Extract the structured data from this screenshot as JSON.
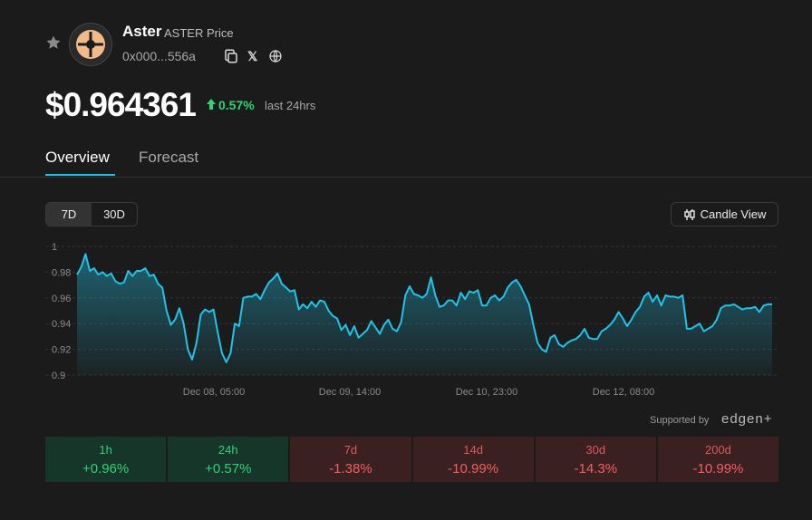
{
  "token": {
    "name": "Aster",
    "subtitle": "ASTER Price",
    "address": "0x000...556a",
    "price": "$0.964361",
    "change": "0.57%",
    "change_label": "last 24hrs",
    "x_glyph": "𝕏"
  },
  "tabs": {
    "overview": "Overview",
    "forecast": "Forecast"
  },
  "controls": {
    "range_7d": "7D",
    "range_30d": "30D",
    "candle_view": "Candle View"
  },
  "colors": {
    "line": "#22c3e6",
    "positive": "#2ed47a",
    "negative": "#f06062"
  },
  "chart_data": {
    "type": "area",
    "y_ticks": [
      "1",
      "0.98",
      "0.96",
      "0.94",
      "0.92",
      "0.9"
    ],
    "ylim": [
      0.9,
      1.0
    ],
    "x_ticks": [
      "Dec 08, 05:00",
      "Dec 09, 14:00",
      "Dec 10, 23:00",
      "Dec 12, 08:00"
    ],
    "values": [
      0.978,
      0.984,
      0.994,
      0.981,
      0.983,
      0.978,
      0.98,
      0.977,
      0.979,
      0.973,
      0.971,
      0.972,
      0.981,
      0.977,
      0.981,
      0.981,
      0.983,
      0.977,
      0.978,
      0.971,
      0.968,
      0.95,
      0.939,
      0.943,
      0.952,
      0.94,
      0.92,
      0.912,
      0.925,
      0.947,
      0.951,
      0.949,
      0.951,
      0.933,
      0.917,
      0.91,
      0.917,
      0.94,
      0.938,
      0.96,
      0.961,
      0.961,
      0.963,
      0.959,
      0.966,
      0.972,
      0.975,
      0.979,
      0.971,
      0.968,
      0.965,
      0.966,
      0.951,
      0.955,
      0.952,
      0.957,
      0.953,
      0.958,
      0.957,
      0.95,
      0.946,
      0.944,
      0.935,
      0.939,
      0.931,
      0.938,
      0.929,
      0.932,
      0.935,
      0.942,
      0.937,
      0.932,
      0.939,
      0.943,
      0.936,
      0.934,
      0.941,
      0.962,
      0.969,
      0.963,
      0.962,
      0.96,
      0.963,
      0.976,
      0.962,
      0.953,
      0.954,
      0.958,
      0.958,
      0.954,
      0.964,
      0.959,
      0.965,
      0.964,
      0.966,
      0.954,
      0.954,
      0.96,
      0.962,
      0.958,
      0.961,
      0.968,
      0.972,
      0.974,
      0.969,
      0.962,
      0.955,
      0.939,
      0.925,
      0.92,
      0.918,
      0.929,
      0.931,
      0.924,
      0.922,
      0.925,
      0.927,
      0.928,
      0.931,
      0.936,
      0.929,
      0.928,
      0.928,
      0.934,
      0.936,
      0.939,
      0.943,
      0.949,
      0.944,
      0.938,
      0.943,
      0.949,
      0.953,
      0.961,
      0.964,
      0.957,
      0.962,
      0.954,
      0.962,
      0.961,
      0.961,
      0.96,
      0.962,
      0.936,
      0.936,
      0.938,
      0.94,
      0.934,
      0.936,
      0.938,
      0.943,
      0.952,
      0.954,
      0.954,
      0.955,
      0.953,
      0.951,
      0.952,
      0.952,
      0.953,
      0.949,
      0.954,
      0.955,
      0.955
    ]
  },
  "attribution": {
    "supported_by": "Supported by",
    "brand": "edgen+"
  },
  "stats": [
    {
      "label": "1h",
      "value": "+0.96%",
      "type": "pos"
    },
    {
      "label": "24h",
      "value": "+0.57%",
      "type": "pos"
    },
    {
      "label": "7d",
      "value": "-1.38%",
      "type": "neg"
    },
    {
      "label": "14d",
      "value": "-10.99%",
      "type": "neg"
    },
    {
      "label": "30d",
      "value": "-14.3%",
      "type": "neg"
    },
    {
      "label": "200d",
      "value": "-10.99%",
      "type": "neg"
    }
  ]
}
